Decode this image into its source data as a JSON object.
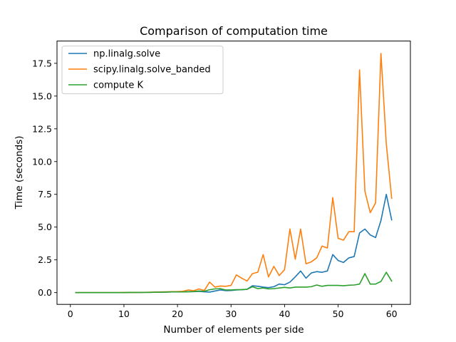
{
  "chart_data": {
    "type": "line",
    "title": "Comparison of computation time",
    "xlabel": "Number of elements per side",
    "ylabel": "Time (seconds)",
    "xlim": [
      -2.5,
      63.5
    ],
    "ylim": [
      -0.9,
      19.2
    ],
    "xticks": [
      0,
      10,
      20,
      30,
      40,
      50,
      60
    ],
    "yticks": [
      0.0,
      2.5,
      5.0,
      7.5,
      10.0,
      12.5,
      15.0,
      17.5
    ],
    "ytick_labels": [
      "0.0",
      "2.5",
      "5.0",
      "7.5",
      "10.0",
      "12.5",
      "15.0",
      "17.5"
    ],
    "grid": false,
    "legend_position": "top-left",
    "x": [
      1,
      2,
      3,
      4,
      5,
      6,
      7,
      8,
      9,
      10,
      11,
      12,
      13,
      14,
      15,
      16,
      17,
      18,
      19,
      20,
      21,
      22,
      23,
      24,
      25,
      26,
      27,
      28,
      29,
      30,
      31,
      32,
      33,
      34,
      35,
      36,
      37,
      38,
      39,
      40,
      41,
      42,
      43,
      44,
      45,
      46,
      47,
      48,
      49,
      50,
      51,
      52,
      53,
      54,
      55,
      56,
      57,
      58,
      59,
      60
    ],
    "series": [
      {
        "name": "np.linalg.solve",
        "color": "#1f77b4",
        "values": [
          0.0,
          0.0,
          0.0,
          0.0,
          0.0,
          0.0,
          0.0,
          0.0,
          0.0,
          0.0,
          0.01,
          0.01,
          0.01,
          0.02,
          0.02,
          0.03,
          0.03,
          0.04,
          0.05,
          0.06,
          0.06,
          0.07,
          0.07,
          0.09,
          0.06,
          0.04,
          0.12,
          0.2,
          0.15,
          0.16,
          0.2,
          0.22,
          0.25,
          0.52,
          0.48,
          0.42,
          0.38,
          0.45,
          0.65,
          0.6,
          0.8,
          1.2,
          1.65,
          1.1,
          1.5,
          1.6,
          1.55,
          1.65,
          2.9,
          2.45,
          2.3,
          2.65,
          2.75,
          4.55,
          4.85,
          4.4,
          4.2,
          5.5,
          7.5,
          5.55
        ]
      },
      {
        "name": "scipy.linalg.solve_banded",
        "color": "#ff7f0e",
        "values": [
          0.0,
          0.0,
          0.0,
          0.0,
          0.0,
          0.0,
          0.0,
          0.0,
          0.0,
          0.01,
          0.01,
          0.01,
          0.02,
          0.02,
          0.03,
          0.04,
          0.05,
          0.06,
          0.07,
          0.08,
          0.1,
          0.2,
          0.14,
          0.28,
          0.16,
          0.8,
          0.42,
          0.5,
          0.48,
          0.55,
          1.35,
          1.1,
          0.88,
          1.45,
          1.55,
          2.9,
          1.2,
          2.0,
          1.3,
          1.75,
          4.85,
          2.55,
          4.85,
          2.2,
          2.35,
          2.65,
          3.55,
          3.4,
          7.25,
          4.15,
          4.0,
          4.65,
          4.65,
          17.0,
          7.75,
          6.1,
          6.85,
          18.25,
          11.35,
          7.2
        ]
      },
      {
        "name": "compute K",
        "color": "#2ca02c",
        "values": [
          0.0,
          0.0,
          0.0,
          0.0,
          0.0,
          0.0,
          0.0,
          0.0,
          0.0,
          0.0,
          0.01,
          0.01,
          0.01,
          0.02,
          0.02,
          0.03,
          0.03,
          0.04,
          0.05,
          0.05,
          0.05,
          0.06,
          0.08,
          0.12,
          0.1,
          0.22,
          0.28,
          0.3,
          0.2,
          0.2,
          0.22,
          0.22,
          0.25,
          0.45,
          0.3,
          0.35,
          0.28,
          0.3,
          0.35,
          0.4,
          0.35,
          0.42,
          0.42,
          0.42,
          0.45,
          0.58,
          0.48,
          0.55,
          0.55,
          0.55,
          0.52,
          0.56,
          0.58,
          0.65,
          1.45,
          0.65,
          0.65,
          0.85,
          1.55,
          0.88
        ]
      }
    ]
  }
}
